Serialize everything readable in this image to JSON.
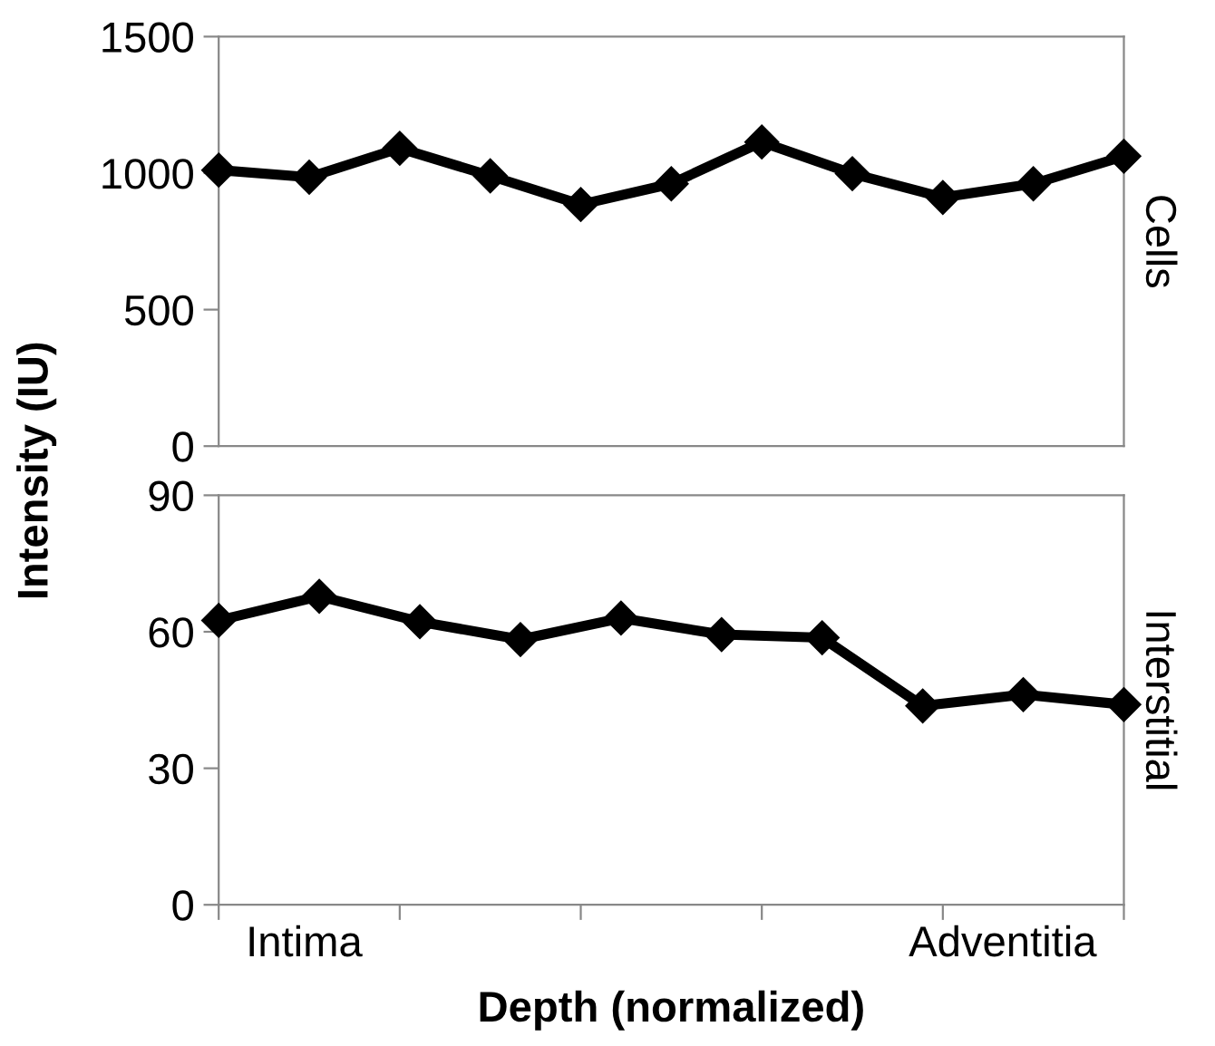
{
  "chart_data": [
    {
      "type": "line",
      "ylabel": "Intensity (IU)",
      "y2label": "Cells",
      "categories": [
        null,
        null,
        null,
        null,
        null,
        null,
        null,
        null,
        null,
        null,
        null
      ],
      "series": [
        {
          "color": "#000000",
          "values": [
            1011,
            985,
            1091,
            990,
            885,
            961,
            1114,
            998,
            911,
            961,
            1062
          ]
        }
      ],
      "ylim": [
        0,
        1500
      ],
      "yticks": [
        0,
        500,
        1000,
        1500
      ],
      "tick_labels": "y",
      "marker": "diamond",
      "line_style": "solid"
    },
    {
      "type": "line",
      "xlabel": "Depth (normalized)",
      "y2label": "Interstitial",
      "annotations": [
        "Intima",
        "Adventitia"
      ],
      "categories": [
        null,
        null,
        null,
        null,
        null,
        null,
        null,
        null,
        null,
        null
      ],
      "series": [
        {
          "color": "#000000",
          "values": [
            62.5,
            67.8,
            62.2,
            58.3,
            63,
            59.4,
            58.7,
            43.7,
            46.2,
            44
          ]
        }
      ],
      "ylim": [
        0,
        90
      ],
      "yticks": [
        0,
        30,
        60,
        90
      ],
      "tick_labels": "y",
      "marker": "diamond",
      "line_style": "solid"
    }
  ]
}
